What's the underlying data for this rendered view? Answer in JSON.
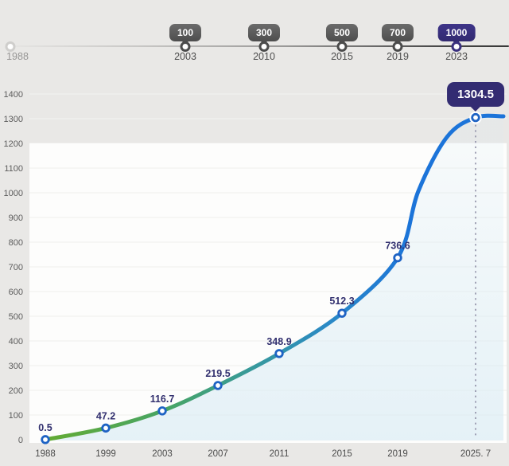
{
  "page": {
    "background": "#e9e8e6"
  },
  "timeline": {
    "items": [
      {
        "year": "1988",
        "badge": null,
        "state": "start"
      },
      {
        "year": "2003",
        "badge": "100",
        "state": "past"
      },
      {
        "year": "2010",
        "badge": "300",
        "state": "past"
      },
      {
        "year": "2015",
        "badge": "500",
        "state": "past"
      },
      {
        "year": "2019",
        "badge": "700",
        "state": "past"
      },
      {
        "year": "2023",
        "badge": "1000",
        "state": "current"
      }
    ]
  },
  "chart_data": {
    "type": "line",
    "x": [
      "1988",
      "1999",
      "2003",
      "2007",
      "2011",
      "2015",
      "2019",
      "2025. 7"
    ],
    "values": [
      0.5,
      47.2,
      116.7,
      219.5,
      348.9,
      512.3,
      736.6,
      1304.5
    ],
    "point_labels": [
      "0.5",
      "47.2",
      "116.7",
      "219.5",
      "348.9",
      "512.3",
      "736.6"
    ],
    "callout": {
      "label": "1304.5"
    },
    "ylim": [
      0,
      1400
    ],
    "ytick_step": 100,
    "grid": true,
    "legend": false,
    "colors": {
      "line_gradient": [
        "#63ab33",
        "#46a468",
        "#37999e",
        "#2a89c6",
        "#1c74d9"
      ],
      "marker_ring": "#1e63c4",
      "point_label": "#32306f",
      "area_tint": "#d8ebf4",
      "callout_bg": "#332c72",
      "dotted_guide": "#8f8fa6",
      "milestone_badge": "#4f4f4f",
      "milestone_highlight": "#39307e",
      "plot_background": "#fdfdfc",
      "gridline": "#efefed"
    }
  }
}
